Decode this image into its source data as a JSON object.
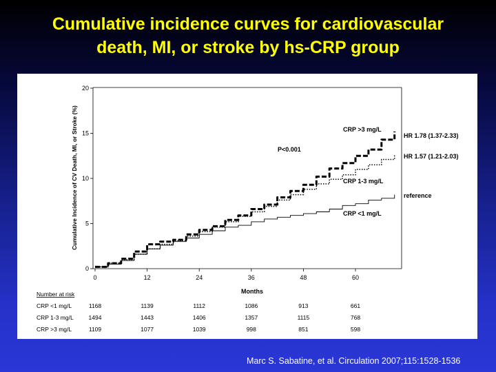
{
  "slide": {
    "title_line1": "Cumulative incidence curves for cardiovascular",
    "title_line2": "death, MI, or stroke by hs-CRP group",
    "citation": "Marc S. Sabatine, et al. Circulation 2007;115:1528-1536"
  },
  "chart_data": {
    "type": "line",
    "title": "",
    "xlabel": "Months",
    "ylabel": "Cumulative Incidence of CV Death, MI, or Stroke (%)",
    "xlim": [
      0,
      72
    ],
    "ylim": [
      0,
      20
    ],
    "xticks": [
      0,
      12,
      24,
      36,
      48,
      60
    ],
    "yticks": [
      0,
      5,
      10,
      15,
      20
    ],
    "grid": false,
    "series": [
      {
        "name": "CRP <1 mg/L",
        "style": "thin-solid",
        "hr_label": "reference",
        "points": [
          [
            0,
            0.2
          ],
          [
            3,
            0.5
          ],
          [
            6,
            0.9
          ],
          [
            9,
            1.6
          ],
          [
            12,
            2.2
          ],
          [
            15,
            2.6
          ],
          [
            18,
            3.0
          ],
          [
            21,
            3.4
          ],
          [
            24,
            3.8
          ],
          [
            27,
            4.2
          ],
          [
            30,
            4.6
          ],
          [
            33,
            4.8
          ],
          [
            36,
            5.2
          ],
          [
            39,
            5.5
          ],
          [
            42,
            5.7
          ],
          [
            45,
            5.9
          ],
          [
            48,
            6.1
          ],
          [
            51,
            6.3
          ],
          [
            54,
            6.6
          ],
          [
            57,
            7.0
          ],
          [
            60,
            7.2
          ],
          [
            63,
            7.6
          ],
          [
            66,
            7.8
          ],
          [
            69,
            8.2
          ]
        ]
      },
      {
        "name": "CRP 1-3 mg/L",
        "style": "dotted",
        "hr_label": "HR 1.57 (1.21-2.03)",
        "points": [
          [
            0,
            0.2
          ],
          [
            3,
            0.6
          ],
          [
            6,
            1.0
          ],
          [
            9,
            1.6
          ],
          [
            12,
            2.2
          ],
          [
            15,
            2.7
          ],
          [
            18,
            3.1
          ],
          [
            21,
            3.6
          ],
          [
            24,
            4.1
          ],
          [
            27,
            4.6
          ],
          [
            30,
            5.2
          ],
          [
            33,
            5.8
          ],
          [
            36,
            6.3
          ],
          [
            39,
            6.9
          ],
          [
            42,
            7.6
          ],
          [
            45,
            8.2
          ],
          [
            48,
            8.8
          ],
          [
            51,
            9.4
          ],
          [
            54,
            9.9
          ],
          [
            57,
            10.4
          ],
          [
            60,
            11.0
          ],
          [
            63,
            11.5
          ],
          [
            66,
            12.1
          ],
          [
            69,
            12.6
          ]
        ]
      },
      {
        "name": "CRP >3 mg/L",
        "style": "thick-dashed",
        "hr_label": "HR 1.78 (1.37-2.33)",
        "points": [
          [
            0,
            0.2
          ],
          [
            3,
            0.6
          ],
          [
            6,
            1.1
          ],
          [
            9,
            1.9
          ],
          [
            12,
            2.7
          ],
          [
            15,
            3.0
          ],
          [
            18,
            3.2
          ],
          [
            21,
            3.8
          ],
          [
            24,
            4.3
          ],
          [
            27,
            4.7
          ],
          [
            30,
            5.4
          ],
          [
            33,
            5.9
          ],
          [
            36,
            6.6
          ],
          [
            39,
            7.1
          ],
          [
            42,
            7.9
          ],
          [
            45,
            8.6
          ],
          [
            48,
            9.3
          ],
          [
            51,
            10.2
          ],
          [
            54,
            11.1
          ],
          [
            57,
            11.7
          ],
          [
            60,
            12.5
          ],
          [
            63,
            13.2
          ],
          [
            66,
            14.3
          ],
          [
            69,
            15.2
          ]
        ]
      }
    ],
    "annotations": [
      "P<0.001"
    ],
    "number_at_risk": {
      "header": "Number at risk",
      "rows": [
        {
          "label": "CRP <1 mg/L",
          "values": [
            "1168",
            "1139",
            "1112",
            "1086",
            "913",
            "661"
          ]
        },
        {
          "label": "CRP 1-3 mg/L",
          "values": [
            "1494",
            "1443",
            "1406",
            "1357",
            "1115",
            "768"
          ]
        },
        {
          "label": "CRP >3 mg/L",
          "values": [
            "1109",
            "1077",
            "1039",
            "998",
            "851",
            "598"
          ]
        }
      ]
    }
  }
}
